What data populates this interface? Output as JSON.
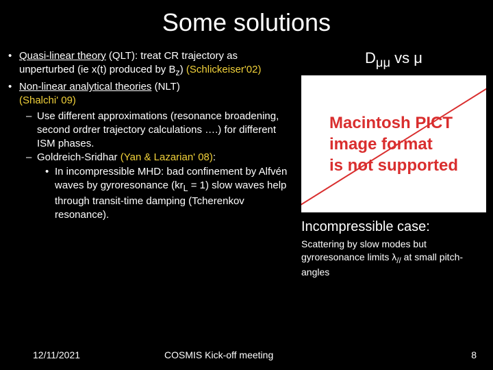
{
  "title": "Some solutions",
  "bullets": {
    "b1_a": "Quasi-linear theory",
    "b1_b": " (QLT): treat CR trajectory as unperturbed (ie x(t) produced by B",
    "b1_sub": "z",
    "b1_c": ") ",
    "b1_yellow": "(Schlickeiser'02)",
    "b2_a": "Non-linear analytical theories",
    "b2_b": " (NLT) ",
    "b2_yellow": "(Shalchi' 09)",
    "sub1": "Use different approximations (resonance broadening, second ordrer trajectory calculations ….) for different ISM phases.",
    "sub2_a": "Goldreich-Sridhar ",
    "sub2_yellow": "(Yan & Lazarian' 08)",
    "sub2_b": ":",
    "sub3_a": "In incompressible MHD: bad confinement by Alfvén waves by gyroresonance (kr",
    "sub3_sub": "L",
    "sub3_b": " = 1) slow waves help through transit-time damping (Tcherenkov resonance)."
  },
  "chart": {
    "title_a": "D",
    "title_sub": "μμ",
    "title_b": " vs μ",
    "pict_l1": "Macintosh PICT",
    "pict_l2": "image format",
    "pict_l3": "is not supported",
    "line_color": "#d92e2e",
    "bg_color": "#ffffff"
  },
  "caption": {
    "main": "Incompressible case:",
    "sub_a": "Scattering by slow modes but gyroresonance limits λ",
    "sub_sub": "//",
    "sub_b": " at small pitch-angles"
  },
  "footer": {
    "date": "12/11/2021",
    "meeting": "COSMIS Kick-off meeting",
    "page": "8"
  }
}
